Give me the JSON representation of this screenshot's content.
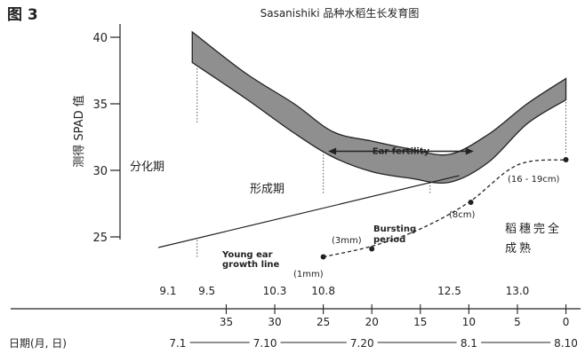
{
  "chart_data": {
    "type": "line",
    "figure_label": "图 3",
    "title": "Sasanishiki 品种水稻生长发育图",
    "ylabel": "测得 SPAD 值",
    "ylim": [
      23,
      41
    ],
    "yticks": [
      25,
      30,
      35,
      40
    ],
    "xlabel": "日期(月, 日)",
    "x_unit": "days before full heading (0 at 8.10)",
    "xlim": [
      47.5,
      -0.5
    ],
    "days_before_ticks": [
      35,
      30,
      25,
      20,
      15,
      10,
      5,
      0
    ],
    "stage_date_labels": [
      {
        "label": "9.1",
        "x": 41
      },
      {
        "label": "9.5",
        "x": 37
      },
      {
        "label": "10.3",
        "x": 30
      },
      {
        "label": "10.8",
        "x": 25
      },
      {
        "label": "12.5",
        "x": 12
      },
      {
        "label": "13.0",
        "x": 5
      }
    ],
    "calendar_dates": [
      {
        "label": "7.1",
        "x": 40
      },
      {
        "label": "7.10",
        "x": 31
      },
      {
        "label": "7.20",
        "x": 21
      },
      {
        "label": "8.1",
        "x": 10
      },
      {
        "label": "8.10",
        "x": 0
      }
    ],
    "series": [
      {
        "kind": "band",
        "upper": [
          [
            38.5,
            40.4
          ],
          [
            33,
            37.3
          ],
          [
            28,
            35
          ],
          [
            24,
            32.9
          ],
          [
            20,
            32.2
          ],
          [
            16,
            31.6
          ],
          [
            12,
            31.2
          ],
          [
            8,
            32.7
          ],
          [
            4,
            35
          ],
          [
            0,
            36.9
          ]
        ],
        "lower": [
          [
            38.5,
            38.1
          ],
          [
            33,
            35.4
          ],
          [
            28,
            32.8
          ],
          [
            24,
            31
          ],
          [
            20,
            29.9
          ],
          [
            16,
            29.4
          ],
          [
            12,
            29.1
          ],
          [
            8,
            30.6
          ],
          [
            4,
            33.5
          ],
          [
            0,
            35.3
          ]
        ]
      },
      {
        "kind": "straight_line",
        "points": [
          [
            42,
            24.2
          ],
          [
            11,
            29.6
          ]
        ]
      },
      {
        "kind": "dashed_curve",
        "points": [
          [
            25,
            23.5
          ],
          [
            20,
            24.3
          ],
          [
            15,
            25.6
          ],
          [
            10,
            27.6
          ],
          [
            5,
            30.4
          ],
          [
            0,
            30.8
          ]
        ],
        "markers": [
          [
            25,
            23.5
          ],
          [
            20,
            24.1
          ],
          [
            9.8,
            27.6
          ],
          [
            0,
            30.8
          ]
        ]
      }
    ],
    "guide_lines": [
      {
        "x": 38,
        "from": 33.6,
        "to": 38.1
      },
      {
        "x": 38,
        "from": 23.5,
        "to": 24.8
      },
      {
        "x": 25,
        "from": 28.3,
        "to": 31.4
      },
      {
        "x": 14,
        "from": 28.3,
        "to": 29.3
      },
      {
        "x": 0,
        "from": 31.3,
        "to": 35.3
      }
    ],
    "annotations": {
      "ear_fertility": "Ear fertility",
      "ear_fertility_from": 24.5,
      "ear_fertility_to": 9.5,
      "stage_tillering": "分化期",
      "stage_formation": "形成期",
      "stage_ripening_1": "稻穗完全",
      "stage_ripening_2": "成熟",
      "young_ear_1": "Young ear",
      "young_ear_2": "growth line",
      "bursting_1": "Bursting",
      "bursting_2": "period",
      "size_1mm": "(1mm)",
      "size_3mm": "(3mm)",
      "size_8cm": "(8cm)",
      "size_16cm": "(16 - 19cm)"
    }
  }
}
